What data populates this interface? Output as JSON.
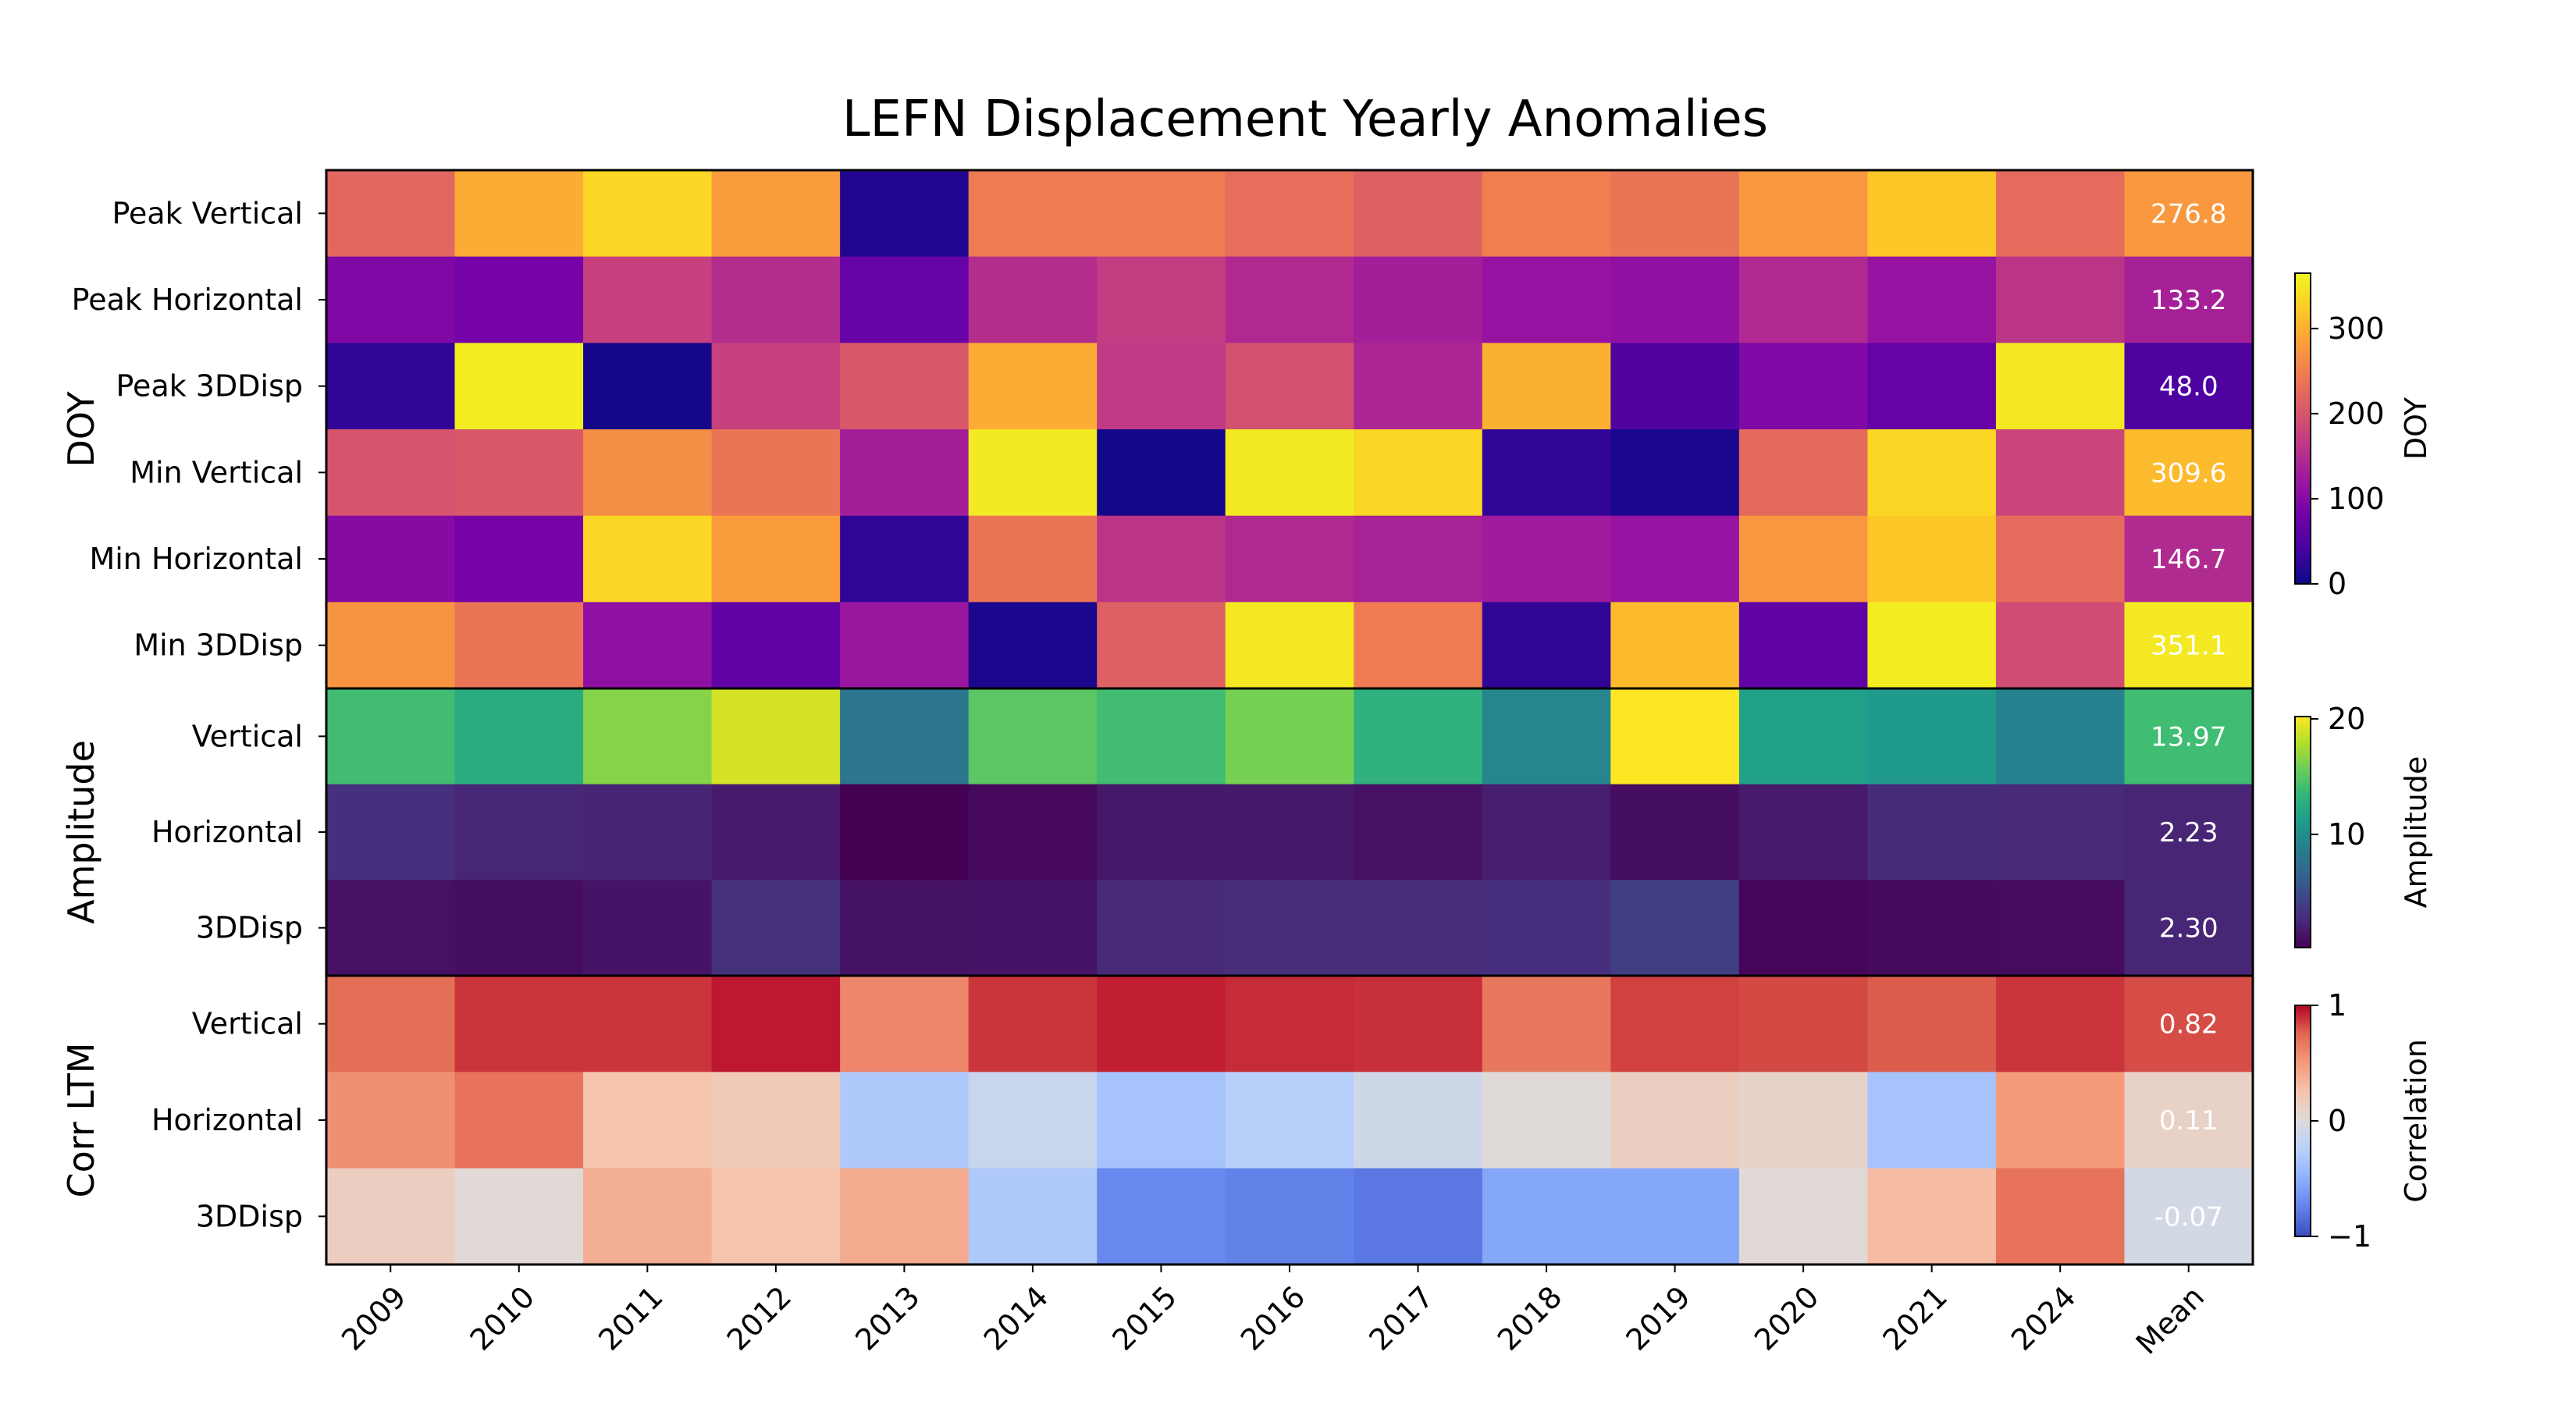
{
  "chart_data": {
    "type": "heatmap",
    "title": "LEFN Displacement Yearly Anomalies",
    "columns": [
      "2009",
      "2010",
      "2011",
      "2012",
      "2013",
      "2014",
      "2015",
      "2016",
      "2017",
      "2018",
      "2019",
      "2020",
      "2021",
      "2024",
      "Mean"
    ],
    "groups": [
      {
        "name": "DOY",
        "colormap": "plasma",
        "colorbar": {
          "label": "DOY",
          "range": [
            0,
            365
          ],
          "ticks": [
            "0",
            "100",
            "200",
            "300"
          ],
          "tick_values": [
            0,
            100,
            200,
            300
          ]
        },
        "rows": [
          {
            "label": "Peak Vertical",
            "values": [
              222,
              295,
              335,
              280,
              15,
              245,
              245,
              230,
              215,
              250,
              238,
              275,
              322,
              228,
              276.8
            ],
            "mean_label": "276.8"
          },
          {
            "label": "Peak Horizontal",
            "values": [
              95,
              85,
              175,
              150,
              70,
              150,
              170,
              145,
              130,
              115,
              110,
              145,
              115,
              160,
              133.2
            ],
            "mean_label": "133.2"
          },
          {
            "label": "Peak 3DDisp",
            "values": [
              25,
              355,
              5,
              175,
              205,
              295,
              165,
              195,
              140,
              300,
              50,
              95,
              70,
              350,
              48.0
            ],
            "mean_label": "48.0"
          },
          {
            "label": "Min Vertical",
            "values": [
              200,
              205,
              265,
              238,
              130,
              352,
              5,
              352,
              335,
              25,
              10,
              225,
              335,
              180,
              309.6
            ],
            "mean_label": "309.6"
          },
          {
            "label": "Min Horizontal",
            "values": [
              100,
              85,
              335,
              280,
              25,
              238,
              160,
              145,
              135,
              125,
              115,
              275,
              322,
              228,
              146.7
            ],
            "mean_label": "146.7"
          },
          {
            "label": "Min 3DDisp",
            "values": [
              272,
              238,
              110,
              65,
              120,
              10,
              215,
              350,
              245,
              25,
              310,
              65,
              355,
              190,
              351.1
            ],
            "mean_label": "351.1"
          }
        ]
      },
      {
        "name": "Amplitude",
        "colormap": "viridis",
        "colorbar": {
          "label": "Amplitude",
          "range": [
            0.2,
            20.2
          ],
          "ticks": [
            "10",
            "20"
          ],
          "tick_values": [
            10,
            20
          ]
        },
        "rows": [
          {
            "label": "Vertical",
            "values": [
              14.0,
              12.5,
              16.5,
              19.0,
              8.0,
              15.0,
              14.0,
              16.0,
              13.0,
              9.5,
              20.2,
              11.5,
              11.0,
              9.0,
              13.97
            ],
            "mean_label": "13.97"
          },
          {
            "label": "Horizontal",
            "values": [
              2.9,
              2.3,
              2.2,
              1.6,
              0.2,
              0.6,
              1.5,
              1.5,
              1.1,
              1.8,
              0.9,
              1.6,
              2.7,
              2.6,
              2.23
            ],
            "mean_label": "2.23"
          },
          {
            "label": "3DDisp",
            "values": [
              1.1,
              0.9,
              1.3,
              3.0,
              1.2,
              1.3,
              2.6,
              2.8,
              2.8,
              2.9,
              4.0,
              0.5,
              0.7,
              0.8,
              2.3
            ],
            "mean_label": "2.30"
          }
        ]
      },
      {
        "name": "Corr LTM",
        "colormap": "coolwarm",
        "colorbar": {
          "label": "Correlation",
          "range": [
            -1,
            1
          ],
          "ticks": [
            "−1",
            "0",
            "1"
          ],
          "tick_values": [
            -1,
            0,
            1
          ]
        },
        "rows": [
          {
            "label": "Vertical",
            "values": [
              0.72,
              0.88,
              0.88,
              0.95,
              0.6,
              0.88,
              0.93,
              0.9,
              0.89,
              0.68,
              0.85,
              0.83,
              0.78,
              0.88,
              0.82
            ],
            "mean_label": "0.82"
          },
          {
            "label": "Horizontal",
            "values": [
              0.55,
              0.7,
              0.25,
              0.2,
              -0.3,
              -0.15,
              -0.35,
              -0.25,
              -0.1,
              0.02,
              0.15,
              0.1,
              -0.35,
              0.5,
              0.11
            ],
            "mean_label": "0.11"
          },
          {
            "label": "3DDisp",
            "values": [
              0.15,
              0.03,
              0.38,
              0.25,
              0.4,
              -0.3,
              -0.72,
              -0.75,
              -0.8,
              -0.55,
              -0.55,
              0.03,
              0.3,
              0.7,
              -0.07
            ],
            "mean_label": "-0.07"
          }
        ]
      }
    ]
  }
}
